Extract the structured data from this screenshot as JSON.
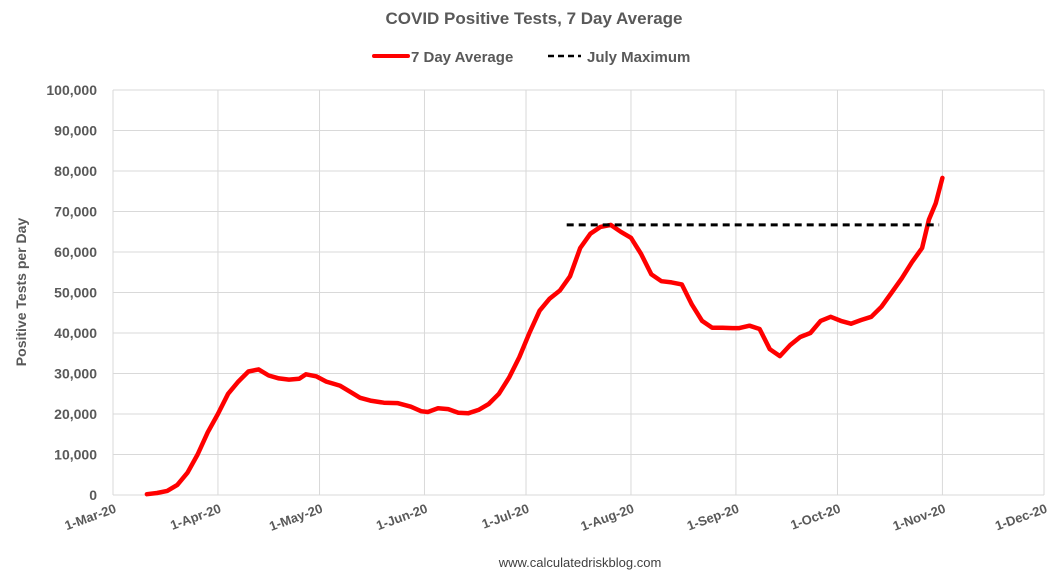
{
  "chart_data": {
    "type": "line",
    "title": "COVID Positive Tests, 7 Day Average",
    "ylabel": "Positive Tests per Day",
    "xlabel": "",
    "ylim": [
      0,
      100000
    ],
    "yticks": [
      0,
      10000,
      20000,
      30000,
      40000,
      50000,
      60000,
      70000,
      80000,
      90000,
      100000
    ],
    "ytick_labels": [
      "0",
      "10,000",
      "20,000",
      "30,000",
      "40,000",
      "50,000",
      "60,000",
      "70,000",
      "80,000",
      "90,000",
      "100,000"
    ],
    "xlim": [
      "2020-03-01",
      "2020-12-01"
    ],
    "xticks": [
      "2020-03-01",
      "2020-04-01",
      "2020-05-01",
      "2020-06-01",
      "2020-07-01",
      "2020-08-01",
      "2020-09-01",
      "2020-10-01",
      "2020-11-01",
      "2020-12-01"
    ],
    "xtick_labels": [
      "1-Mar-20",
      "1-Apr-20",
      "1-May-20",
      "1-Jun-20",
      "1-Jul-20",
      "1-Aug-20",
      "1-Sep-20",
      "1-Oct-20",
      "1-Nov-20",
      "1-Dec-20"
    ],
    "grid": true,
    "legend_position": "top",
    "series": [
      {
        "name": "7 Day Average",
        "color": "#ff0000",
        "style": "solid",
        "points": [
          [
            "2020-03-11",
            200
          ],
          [
            "2020-03-14",
            500
          ],
          [
            "2020-03-17",
            1000
          ],
          [
            "2020-03-20",
            2500
          ],
          [
            "2020-03-23",
            5500
          ],
          [
            "2020-03-26",
            10000
          ],
          [
            "2020-03-29",
            15500
          ],
          [
            "2020-04-01",
            20000
          ],
          [
            "2020-04-04",
            25000
          ],
          [
            "2020-04-07",
            28000
          ],
          [
            "2020-04-10",
            30500
          ],
          [
            "2020-04-13",
            31000
          ],
          [
            "2020-04-16",
            29500
          ],
          [
            "2020-04-19",
            28800
          ],
          [
            "2020-04-22",
            28500
          ],
          [
            "2020-04-25",
            28700
          ],
          [
            "2020-04-27",
            29800
          ],
          [
            "2020-04-30",
            29300
          ],
          [
            "2020-05-03",
            28000
          ],
          [
            "2020-05-07",
            27000
          ],
          [
            "2020-05-10",
            25500
          ],
          [
            "2020-05-13",
            24000
          ],
          [
            "2020-05-16",
            23300
          ],
          [
            "2020-05-20",
            22800
          ],
          [
            "2020-05-24",
            22700
          ],
          [
            "2020-05-28",
            21800
          ],
          [
            "2020-05-31",
            20700
          ],
          [
            "2020-06-02",
            20500
          ],
          [
            "2020-06-05",
            21400
          ],
          [
            "2020-06-08",
            21200
          ],
          [
            "2020-06-11",
            20300
          ],
          [
            "2020-06-14",
            20200
          ],
          [
            "2020-06-17",
            21000
          ],
          [
            "2020-06-20",
            22500
          ],
          [
            "2020-06-23",
            25000
          ],
          [
            "2020-06-26",
            29000
          ],
          [
            "2020-06-29",
            34000
          ],
          [
            "2020-07-02",
            40000
          ],
          [
            "2020-07-05",
            45500
          ],
          [
            "2020-07-08",
            48500
          ],
          [
            "2020-07-11",
            50500
          ],
          [
            "2020-07-14",
            54000
          ],
          [
            "2020-07-17",
            61000
          ],
          [
            "2020-07-20",
            64500
          ],
          [
            "2020-07-23",
            66200
          ],
          [
            "2020-07-26",
            66700
          ],
          [
            "2020-07-29",
            65000
          ],
          [
            "2020-08-01",
            63500
          ],
          [
            "2020-08-04",
            59500
          ],
          [
            "2020-08-07",
            54500
          ],
          [
            "2020-08-10",
            52800
          ],
          [
            "2020-08-13",
            52500
          ],
          [
            "2020-08-16",
            52000
          ],
          [
            "2020-08-19",
            47000
          ],
          [
            "2020-08-22",
            43000
          ],
          [
            "2020-08-25",
            41300
          ],
          [
            "2020-08-28",
            41300
          ],
          [
            "2020-08-31",
            41200
          ],
          [
            "2020-09-02",
            41200
          ],
          [
            "2020-09-05",
            41800
          ],
          [
            "2020-09-08",
            41000
          ],
          [
            "2020-09-11",
            36000
          ],
          [
            "2020-09-14",
            34300
          ],
          [
            "2020-09-17",
            37000
          ],
          [
            "2020-09-20",
            39000
          ],
          [
            "2020-09-23",
            40000
          ],
          [
            "2020-09-26",
            43000
          ],
          [
            "2020-09-29",
            44000
          ],
          [
            "2020-10-02",
            43000
          ],
          [
            "2020-10-05",
            42300
          ],
          [
            "2020-10-08",
            43200
          ],
          [
            "2020-10-11",
            44000
          ],
          [
            "2020-10-14",
            46500
          ],
          [
            "2020-10-17",
            50000
          ],
          [
            "2020-10-20",
            53500
          ],
          [
            "2020-10-23",
            57500
          ],
          [
            "2020-10-26",
            61000
          ],
          [
            "2020-10-28",
            68000
          ],
          [
            "2020-10-30",
            72000
          ],
          [
            "2020-11-01",
            78300
          ]
        ]
      },
      {
        "name": "July Maximum",
        "color": "#000000",
        "style": "dashed",
        "points": [
          [
            "2020-07-13",
            66700
          ],
          [
            "2020-10-31",
            66700
          ]
        ]
      }
    ],
    "source": "www.calculatedriskblog.com"
  }
}
